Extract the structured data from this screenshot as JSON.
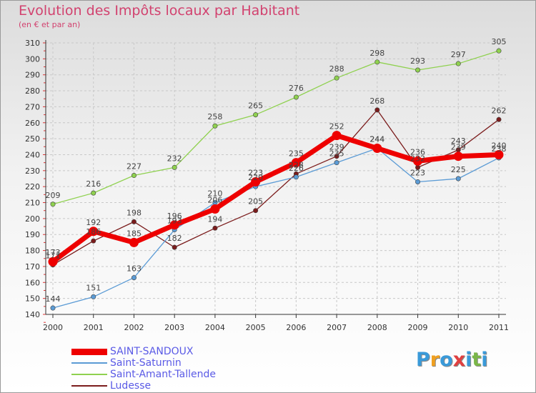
{
  "header": {
    "title": "Evolution des Impôts locaux par Habitant",
    "subtitle": "(en € et par an)"
  },
  "logo": {
    "text": "Proxiti",
    "letters": [
      {
        "char": "P",
        "color": "#3a9ad9"
      },
      {
        "char": "r",
        "color": "#f0a020"
      },
      {
        "char": "o",
        "color": "#3a9ad9"
      },
      {
        "char": "x",
        "color": "#e04040"
      },
      {
        "char": "i",
        "color": "#3a9ad9"
      },
      {
        "char": "t",
        "color": "#7ab648"
      },
      {
        "char": "i",
        "color": "#3a9ad9"
      }
    ]
  },
  "chart_data": {
    "type": "line",
    "title": "Evolution des Impôts locaux par Habitant",
    "subtitle": "(en € et par an)",
    "x": [
      "2000",
      "2001",
      "2002",
      "2003",
      "2004",
      "2005",
      "2006",
      "2007",
      "2008",
      "2009",
      "2010",
      "2011"
    ],
    "ylim": [
      140,
      310
    ],
    "yticks": [
      140,
      150,
      160,
      170,
      180,
      190,
      200,
      210,
      220,
      230,
      240,
      250,
      260,
      270,
      280,
      290,
      300,
      310
    ],
    "grid": true,
    "legend_position": "bottom-left",
    "series": [
      {
        "name": "SAINT-SANDOUX",
        "color": "#ee0000",
        "values": [
          173,
          192,
          185,
          196,
          206,
          223,
          235,
          252,
          244,
          236,
          239,
          240
        ]
      },
      {
        "name": "Saint-Saturnin",
        "color": "#5b9bd5",
        "values": [
          144,
          151,
          163,
          193,
          210,
          220,
          226,
          235,
          244,
          223,
          225,
          238
        ]
      },
      {
        "name": "Saint-Amant-Tallende",
        "color": "#8fd14f",
        "values": [
          209,
          216,
          227,
          232,
          258,
          265,
          276,
          288,
          298,
          293,
          297,
          305
        ]
      },
      {
        "name": "Ludesse",
        "color": "#7b1c1c",
        "values": [
          171,
          186,
          198,
          182,
          194,
          205,
          228,
          239,
          268,
          232,
          243,
          262
        ]
      }
    ]
  }
}
